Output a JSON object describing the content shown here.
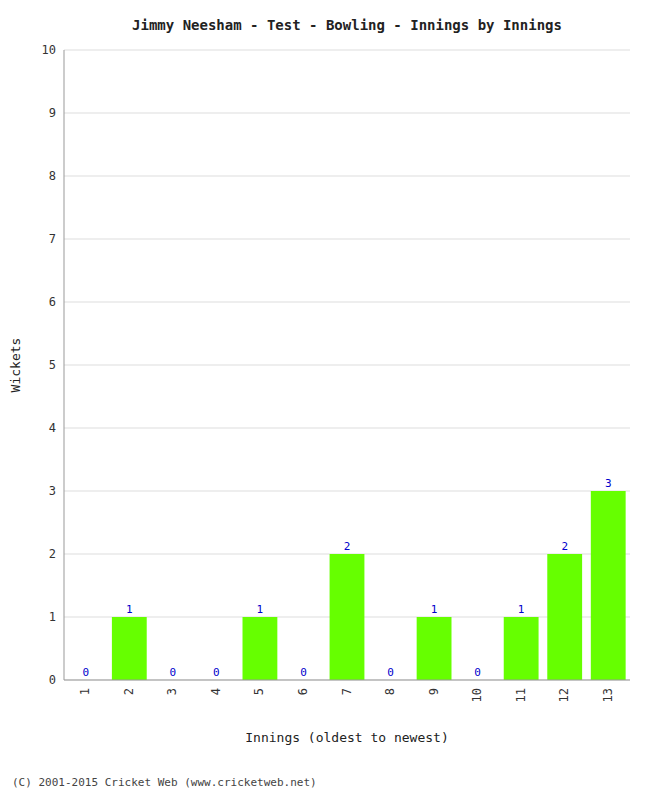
{
  "chart_data": {
    "type": "bar",
    "title": "Jimmy Neesham - Test - Bowling - Innings by Innings",
    "xlabel": "Innings (oldest to newest)",
    "ylabel": "Wickets",
    "categories": [
      1,
      2,
      3,
      4,
      5,
      6,
      7,
      8,
      9,
      10,
      11,
      12,
      13
    ],
    "values": [
      0,
      1,
      0,
      0,
      1,
      0,
      2,
      0,
      1,
      0,
      1,
      2,
      3
    ],
    "color": "#66ff00",
    "ylim": [
      0,
      10
    ],
    "yticks": [
      0,
      1,
      2,
      3,
      4,
      5,
      6,
      7,
      8,
      9,
      10
    ],
    "grid": true,
    "data_labels": true,
    "annotations": [
      "(C) 2001-2015 Cricket Web (www.cricketweb.net)"
    ]
  }
}
